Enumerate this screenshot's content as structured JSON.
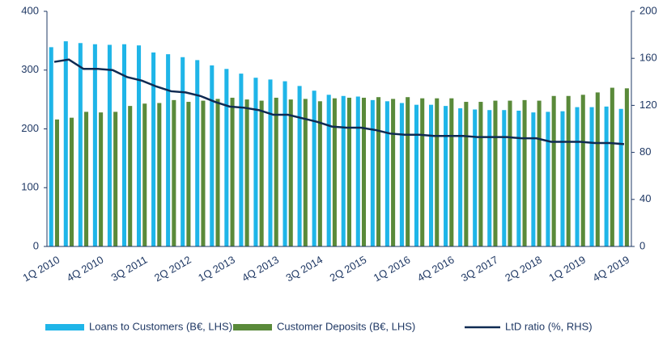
{
  "chart_data": {
    "type": "bar_line",
    "categories": [
      "1Q 2010",
      null,
      null,
      "4Q 2010",
      null,
      null,
      "3Q 2011",
      null,
      null,
      "2Q 2012",
      null,
      null,
      "1Q 2013",
      null,
      null,
      "4Q 2013",
      null,
      null,
      "3Q 2014",
      null,
      null,
      "2Q 2015",
      null,
      null,
      "1Q 2016",
      null,
      null,
      "4Q 2016",
      null,
      null,
      "3Q 2017",
      null,
      null,
      "2Q 2018",
      null,
      null,
      "1Q 2019",
      null,
      null,
      "4Q 2019"
    ],
    "series": [
      {
        "name": "Loans to Customers (B€, LHS)",
        "color": "#1fb5e8",
        "kind": "bar",
        "values": [
          339,
          349,
          346,
          344,
          343,
          344,
          342,
          330,
          327,
          322,
          317,
          308,
          302,
          294,
          287,
          284,
          281,
          273,
          265,
          258,
          256,
          255,
          249,
          247,
          244,
          241,
          241,
          239,
          235,
          233,
          232,
          232,
          231,
          228,
          229,
          230,
          237,
          237,
          238,
          234
        ]
      },
      {
        "name": "Customer Deposits (B€, LHS)",
        "color": "#5a8a3a",
        "kind": "bar",
        "values": [
          216,
          219,
          229,
          228,
          229,
          239,
          243,
          244,
          249,
          246,
          248,
          251,
          253,
          250,
          248,
          253,
          250,
          251,
          247,
          252,
          253,
          253,
          254,
          251,
          254,
          252,
          252,
          252,
          246,
          246,
          248,
          248,
          249,
          248,
          256,
          256,
          258,
          262,
          270,
          269
        ]
      },
      {
        "name": "LtD ratio (%, RHS)",
        "color": "#0f2a52",
        "kind": "line",
        "axis": "y2",
        "values": [
          157,
          159,
          151,
          151,
          150,
          144,
          141,
          136,
          132,
          131,
          128,
          123,
          119,
          118,
          116,
          112,
          112,
          109,
          106,
          102,
          101,
          101,
          99,
          96,
          95,
          95,
          94,
          94,
          94,
          93,
          93,
          93,
          92,
          92,
          89,
          89,
          89,
          88,
          88,
          87
        ]
      }
    ],
    "ylim": [
      0,
      400
    ],
    "yticks": [
      0,
      100,
      200,
      300,
      400
    ],
    "y2lim": [
      0,
      200
    ],
    "y2ticks": [
      0,
      40,
      80,
      120,
      160,
      200
    ],
    "legend": "bottom"
  }
}
